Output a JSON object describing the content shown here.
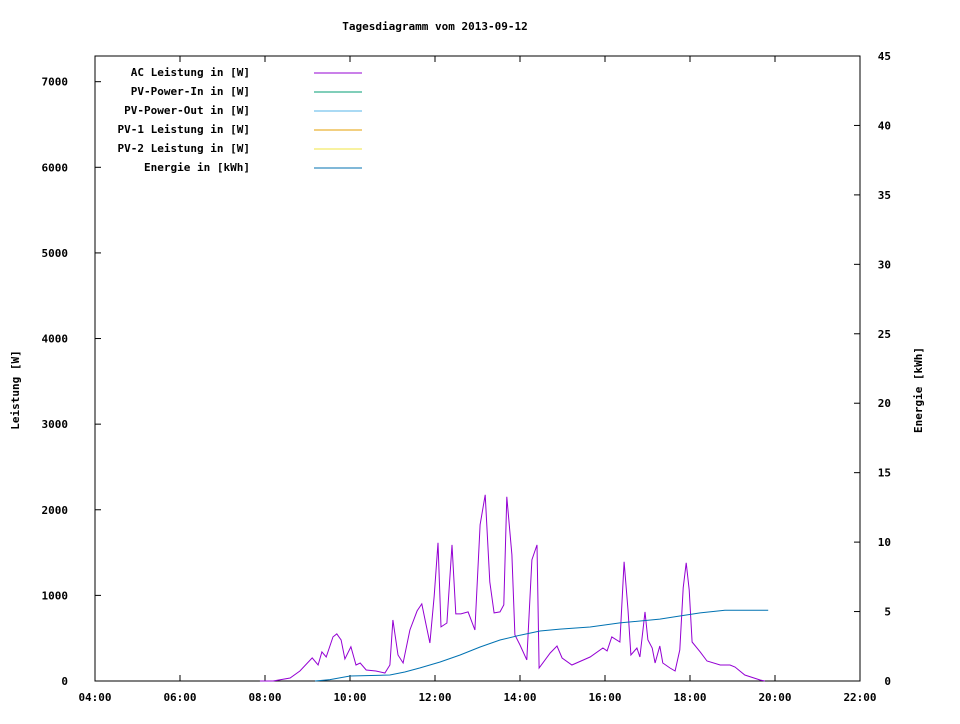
{
  "chart_data": {
    "type": "line",
    "title": "Tagesdiagramm vom 2013-09-12",
    "xlabel": "",
    "ylabel": "Leistung [W]",
    "y2label": "Energie [kWh]",
    "xlim": [
      4,
      22
    ],
    "ylim": [
      0,
      7300
    ],
    "y2lim": [
      0,
      45
    ],
    "x_ticks": [
      {
        "v": 4,
        "label": "04:00"
      },
      {
        "v": 6,
        "label": "06:00"
      },
      {
        "v": 8,
        "label": "08:00"
      },
      {
        "v": 10,
        "label": "10:00"
      },
      {
        "v": 12,
        "label": "12:00"
      },
      {
        "v": 14,
        "label": "14:00"
      },
      {
        "v": 16,
        "label": "16:00"
      },
      {
        "v": 18,
        "label": "18:00"
      },
      {
        "v": 20,
        "label": "20:00"
      },
      {
        "v": 22,
        "label": "22:00"
      }
    ],
    "y_ticks": [
      {
        "v": 0,
        "label": "0"
      },
      {
        "v": 1000,
        "label": "1000"
      },
      {
        "v": 2000,
        "label": "2000"
      },
      {
        "v": 3000,
        "label": "3000"
      },
      {
        "v": 4000,
        "label": "4000"
      },
      {
        "v": 5000,
        "label": "5000"
      },
      {
        "v": 6000,
        "label": "6000"
      },
      {
        "v": 7000,
        "label": "7000"
      }
    ],
    "y2_ticks": [
      {
        "v": 0,
        "label": "0"
      },
      {
        "v": 5,
        "label": "5"
      },
      {
        "v": 10,
        "label": "10"
      },
      {
        "v": 15,
        "label": "15"
      },
      {
        "v": 20,
        "label": "20"
      },
      {
        "v": 25,
        "label": "25"
      },
      {
        "v": 30,
        "label": "30"
      },
      {
        "v": 35,
        "label": "35"
      },
      {
        "v": 40,
        "label": "40"
      },
      {
        "v": 45,
        "label": "45"
      }
    ],
    "legend_position": "top-left",
    "series": [
      {
        "name": "AC Leistung in [W]",
        "color": "#9400d3",
        "axis": "y",
        "points": [
          [
            7.88,
            0
          ],
          [
            8.0,
            0
          ],
          [
            8.19,
            0
          ],
          [
            8.59,
            35
          ],
          [
            8.82,
            117
          ],
          [
            9.11,
            270
          ],
          [
            9.25,
            187
          ],
          [
            9.34,
            340
          ],
          [
            9.44,
            280
          ],
          [
            9.6,
            515
          ],
          [
            9.69,
            550
          ],
          [
            9.79,
            480
          ],
          [
            9.88,
            257
          ],
          [
            10.02,
            400
          ],
          [
            10.14,
            187
          ],
          [
            10.24,
            210
          ],
          [
            10.38,
            129
          ],
          [
            10.61,
            117
          ],
          [
            10.82,
            94
          ],
          [
            10.94,
            187
          ],
          [
            11.01,
            713
          ],
          [
            11.13,
            304
          ],
          [
            11.25,
            210
          ],
          [
            11.41,
            596
          ],
          [
            11.58,
            819
          ],
          [
            11.69,
            900
          ],
          [
            11.79,
            655
          ],
          [
            11.88,
            444
          ],
          [
            11.98,
            994
          ],
          [
            12.07,
            1614
          ],
          [
            12.14,
            632
          ],
          [
            12.28,
            678
          ],
          [
            12.4,
            1590
          ],
          [
            12.49,
            784
          ],
          [
            12.61,
            784
          ],
          [
            12.78,
            807
          ],
          [
            12.94,
            596
          ],
          [
            13.06,
            1825
          ],
          [
            13.18,
            2175
          ],
          [
            13.29,
            1158
          ],
          [
            13.39,
            795
          ],
          [
            13.53,
            807
          ],
          [
            13.62,
            889
          ],
          [
            13.69,
            2152
          ],
          [
            13.81,
            1474
          ],
          [
            13.88,
            538
          ],
          [
            14.0,
            421
          ],
          [
            14.16,
            246
          ],
          [
            14.28,
            1415
          ],
          [
            14.4,
            1590
          ],
          [
            14.45,
            152
          ],
          [
            14.71,
            327
          ],
          [
            14.87,
            409
          ],
          [
            14.99,
            269
          ],
          [
            15.22,
            187
          ],
          [
            15.65,
            280
          ],
          [
            15.95,
            386
          ],
          [
            16.05,
            351
          ],
          [
            16.16,
            515
          ],
          [
            16.35,
            456
          ],
          [
            16.45,
            1392
          ],
          [
            16.54,
            830
          ],
          [
            16.61,
            304
          ],
          [
            16.75,
            386
          ],
          [
            16.82,
            280
          ],
          [
            16.94,
            807
          ],
          [
            17.01,
            480
          ],
          [
            17.11,
            386
          ],
          [
            17.18,
            210
          ],
          [
            17.29,
            409
          ],
          [
            17.36,
            210
          ],
          [
            17.53,
            152
          ],
          [
            17.65,
            117
          ],
          [
            17.76,
            363
          ],
          [
            17.84,
            1088
          ],
          [
            17.91,
            1380
          ],
          [
            17.98,
            1064
          ],
          [
            18.05,
            456
          ],
          [
            18.24,
            340
          ],
          [
            18.4,
            234
          ],
          [
            18.71,
            187
          ],
          [
            18.94,
            187
          ],
          [
            19.06,
            164
          ],
          [
            19.29,
            70
          ],
          [
            19.65,
            12
          ],
          [
            19.76,
            0
          ]
        ]
      },
      {
        "name": "PV-Power-In in [W]",
        "color": "#009e73",
        "axis": "y",
        "points": []
      },
      {
        "name": "PV-Power-Out in [W]",
        "color": "#56b4e9",
        "axis": "y",
        "points": []
      },
      {
        "name": "PV-1 Leistung in [W]",
        "color": "#e69f00",
        "axis": "y",
        "points": []
      },
      {
        "name": "PV-2 Leistung in [W]",
        "color": "#f0e442",
        "axis": "y",
        "points": []
      },
      {
        "name": "Energie in [kWh]",
        "color": "#0072b2",
        "axis": "y2",
        "points": [
          [
            9.18,
            0
          ],
          [
            9.53,
            0.1
          ],
          [
            10.0,
            0.36
          ],
          [
            10.94,
            0.43
          ],
          [
            11.29,
            0.65
          ],
          [
            11.65,
            0.94
          ],
          [
            12.12,
            1.37
          ],
          [
            12.59,
            1.87
          ],
          [
            13.06,
            2.45
          ],
          [
            13.53,
            2.95
          ],
          [
            14.0,
            3.3
          ],
          [
            14.47,
            3.6
          ],
          [
            14.94,
            3.74
          ],
          [
            15.65,
            3.89
          ],
          [
            16.35,
            4.18
          ],
          [
            17.29,
            4.46
          ],
          [
            17.76,
            4.68
          ],
          [
            18.24,
            4.9
          ],
          [
            18.82,
            5.1
          ],
          [
            19.84,
            5.1
          ]
        ]
      }
    ]
  }
}
